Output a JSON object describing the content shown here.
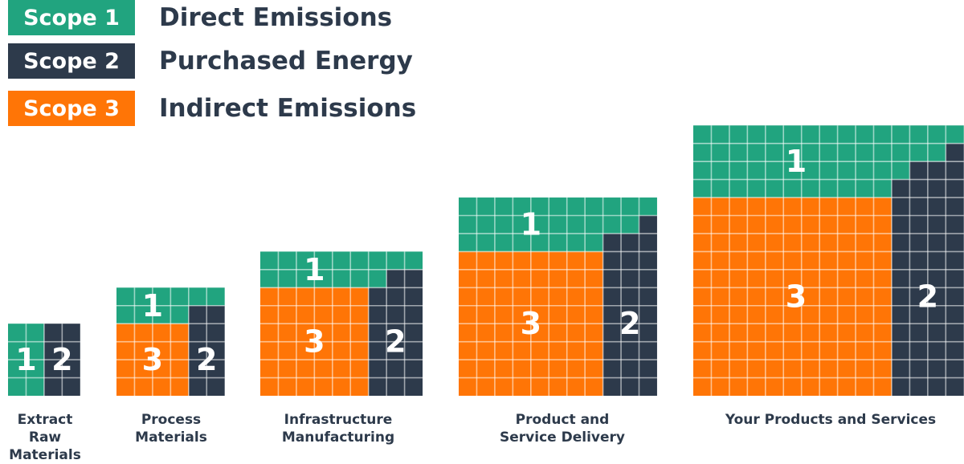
{
  "colors": {
    "scope1": "#21a47f",
    "scope2": "#2d3a4b",
    "scope3": "#ff7506",
    "text": "#2d3a4b",
    "grid": "#ffffff"
  },
  "legend": [
    {
      "badge": "Scope 1",
      "label": "Direct Emissions",
      "color": "#21a47f"
    },
    {
      "badge": "Scope 2",
      "label": "Purchased Energy",
      "color": "#2d3a4b"
    },
    {
      "badge": "Scope 3",
      "label": "Indirect Emissions",
      "color": "#ff7506"
    }
  ],
  "stages": [
    {
      "caption": [
        "Extract Raw",
        "Materials"
      ],
      "labels": [
        "1",
        "2"
      ]
    },
    {
      "caption": [
        "Process",
        "Materials"
      ],
      "labels": [
        "1",
        "3",
        "2"
      ]
    },
    {
      "caption": [
        "Infrastructure",
        "Manufacturing"
      ],
      "labels": [
        "1",
        "3",
        "2"
      ]
    },
    {
      "caption": [
        "Product and",
        "Service Delivery"
      ],
      "labels": [
        "1",
        "3",
        "2"
      ]
    },
    {
      "caption": [
        "Your Products and Services"
      ],
      "labels": [
        "1",
        "3",
        "2"
      ]
    }
  ]
}
